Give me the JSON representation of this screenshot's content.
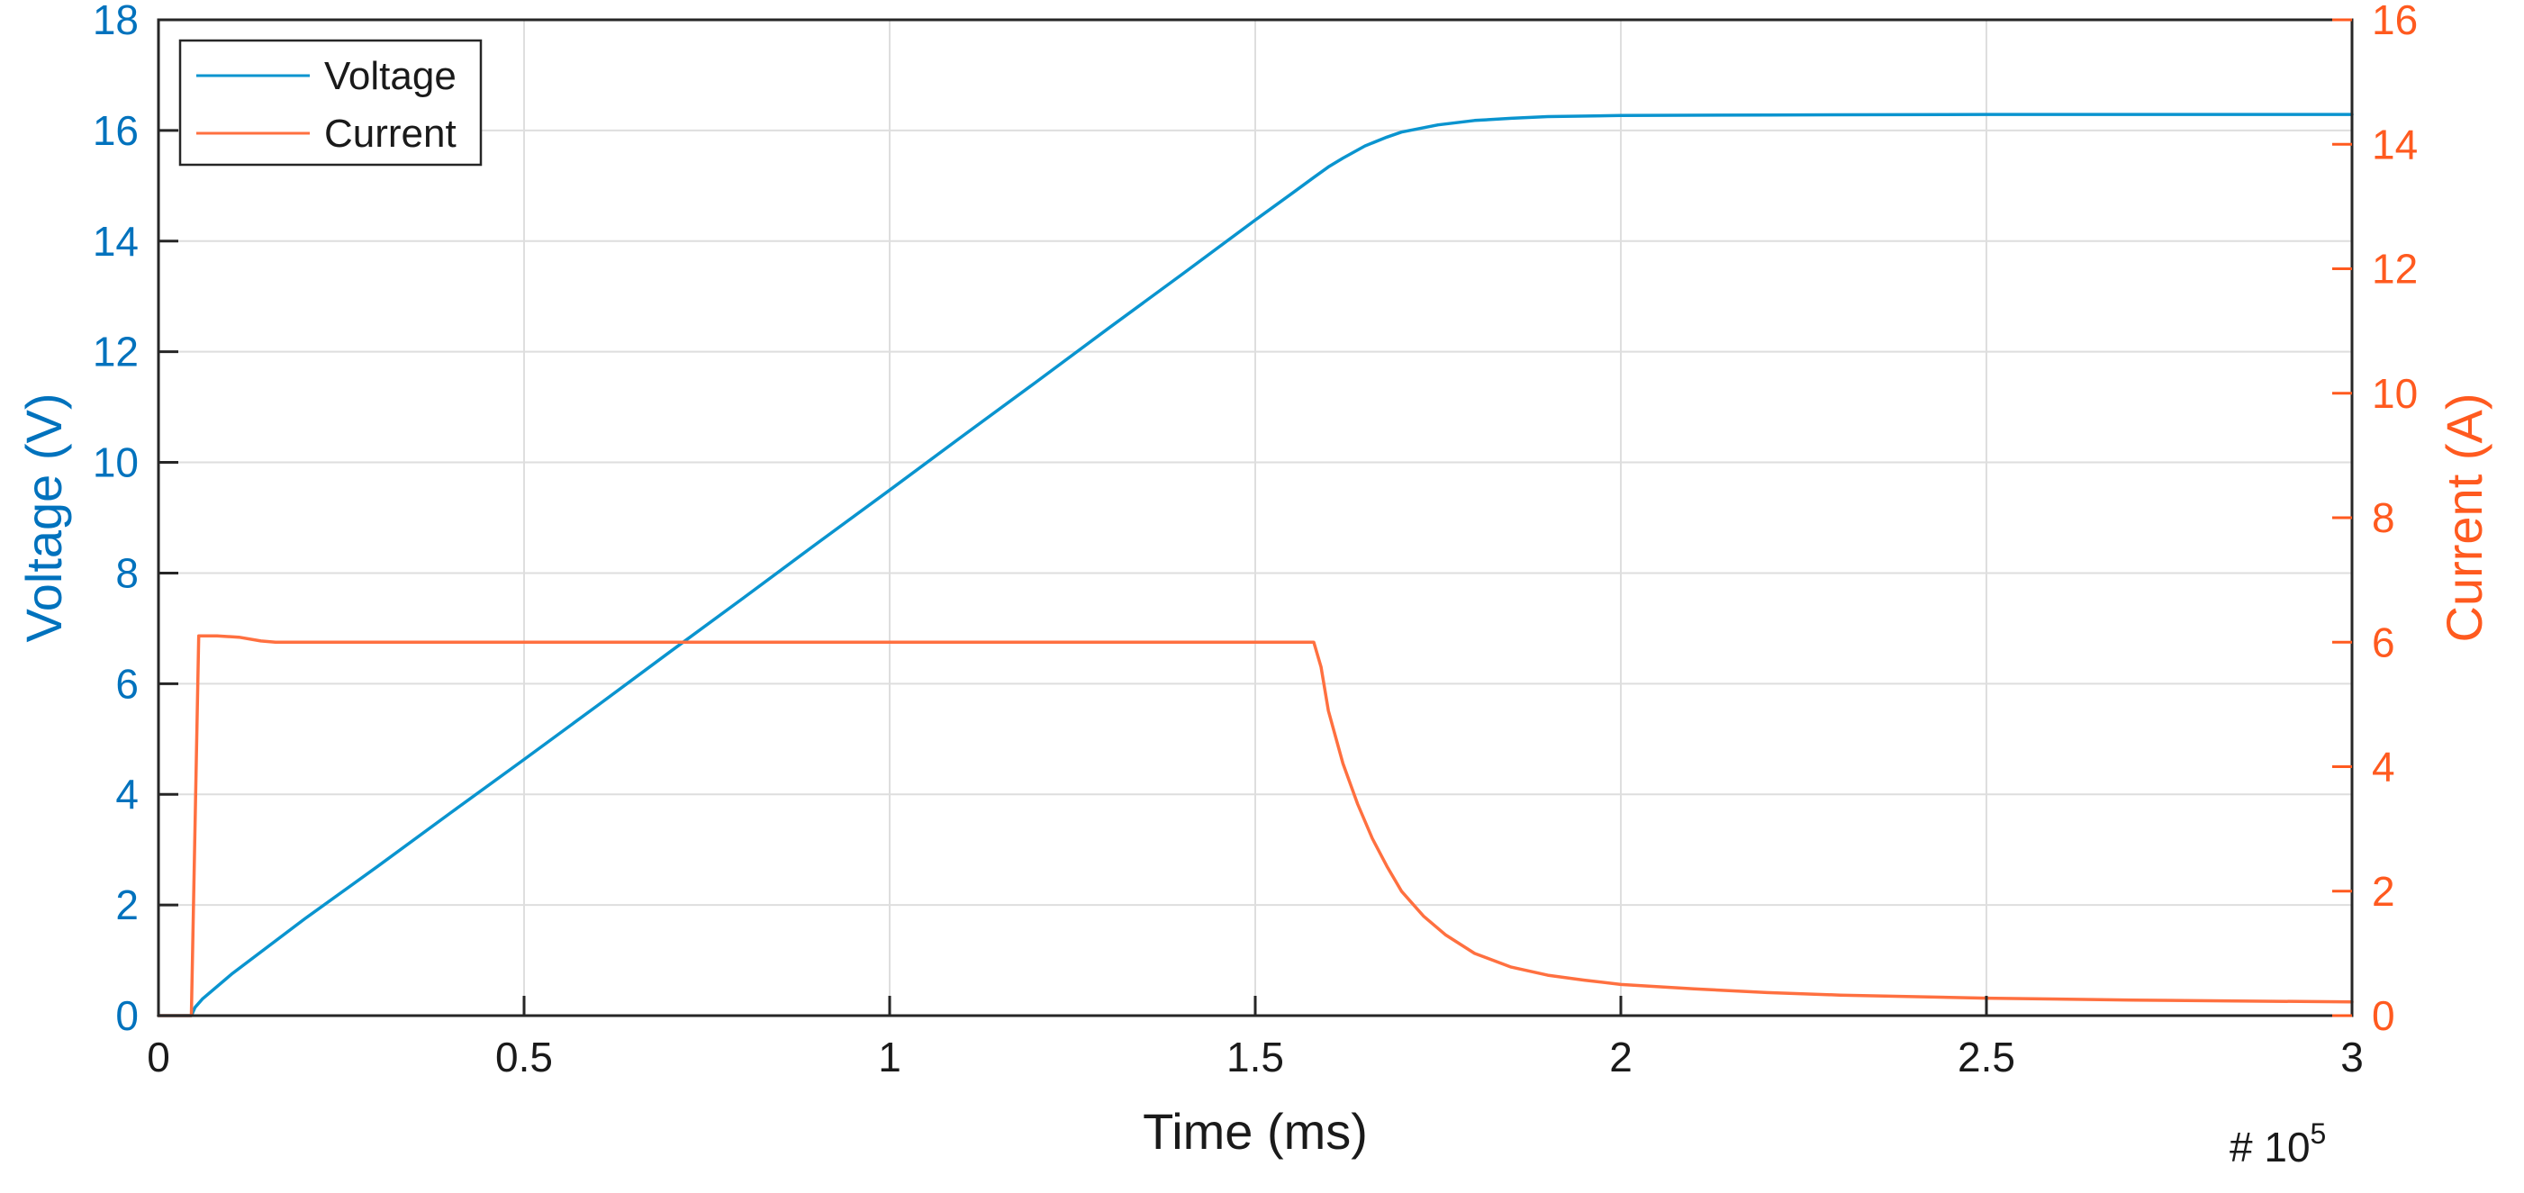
{
  "chart_data": {
    "type": "line",
    "xlabel": "Time (ms)",
    "x_exponent_label": "# 10",
    "x_exponent_power": "5",
    "xlim": [
      0,
      300000
    ],
    "x_ticks": [
      0,
      50000,
      100000,
      150000,
      200000,
      250000,
      300000
    ],
    "x_tick_labels": [
      "0",
      "0.5",
      "1",
      "1.5",
      "2",
      "2.5",
      "3"
    ],
    "y_left": {
      "label": "Voltage (V)",
      "lim": [
        0,
        18
      ],
      "ticks": [
        0,
        2,
        4,
        6,
        8,
        10,
        12,
        14,
        16,
        18
      ],
      "tick_labels": [
        "0",
        "2",
        "4",
        "6",
        "8",
        "10",
        "12",
        "14",
        "16",
        "18"
      ],
      "color": "#0072BD"
    },
    "y_right": {
      "label": "Current (A)",
      "lim": [
        0,
        16
      ],
      "ticks": [
        0,
        2,
        4,
        6,
        8,
        10,
        12,
        14,
        16
      ],
      "tick_labels": [
        "0",
        "2",
        "4",
        "6",
        "8",
        "10",
        "12",
        "14",
        "16"
      ],
      "color": "#FF5A1F"
    },
    "grid": true,
    "legend_position": "top-left",
    "series": [
      {
        "name": "Voltage",
        "axis": "left",
        "color": "#0A94CF",
        "x": [
          0,
          4500,
          5000,
          6000,
          10000,
          20000,
          30000,
          40000,
          50000,
          60000,
          70000,
          80000,
          90000,
          100000,
          110000,
          120000,
          130000,
          140000,
          150000,
          155000,
          158000,
          160000,
          162000,
          165000,
          168000,
          170000,
          175000,
          180000,
          185000,
          190000,
          200000,
          220000,
          250000,
          300000
        ],
        "y": [
          0,
          0,
          0.15,
          0.3,
          0.75,
          1.75,
          2.7,
          3.67,
          4.63,
          5.6,
          6.58,
          7.55,
          8.53,
          9.5,
          10.48,
          11.45,
          12.43,
          13.4,
          14.38,
          14.86,
          15.15,
          15.34,
          15.5,
          15.72,
          15.88,
          15.97,
          16.1,
          16.18,
          16.22,
          16.25,
          16.27,
          16.28,
          16.29,
          16.29
        ]
      },
      {
        "name": "Current",
        "axis": "right",
        "color": "#FF7040",
        "x": [
          0,
          4500,
          5500,
          8000,
          11000,
          14000,
          16000,
          20000,
          50000,
          100000,
          150000,
          157000,
          158000,
          159000,
          160000,
          162000,
          164000,
          166000,
          168000,
          170000,
          173000,
          176000,
          180000,
          185000,
          190000,
          195000,
          200000,
          210000,
          220000,
          230000,
          250000,
          270000,
          300000
        ],
        "y": [
          0,
          0,
          6.1,
          6.1,
          6.08,
          6.02,
          6.0,
          6.0,
          6.0,
          6.0,
          6.0,
          6.0,
          6.0,
          5.6,
          4.9,
          4.05,
          3.4,
          2.85,
          2.4,
          2.0,
          1.6,
          1.3,
          1.0,
          0.78,
          0.65,
          0.57,
          0.5,
          0.43,
          0.37,
          0.33,
          0.28,
          0.25,
          0.22
        ]
      }
    ]
  }
}
